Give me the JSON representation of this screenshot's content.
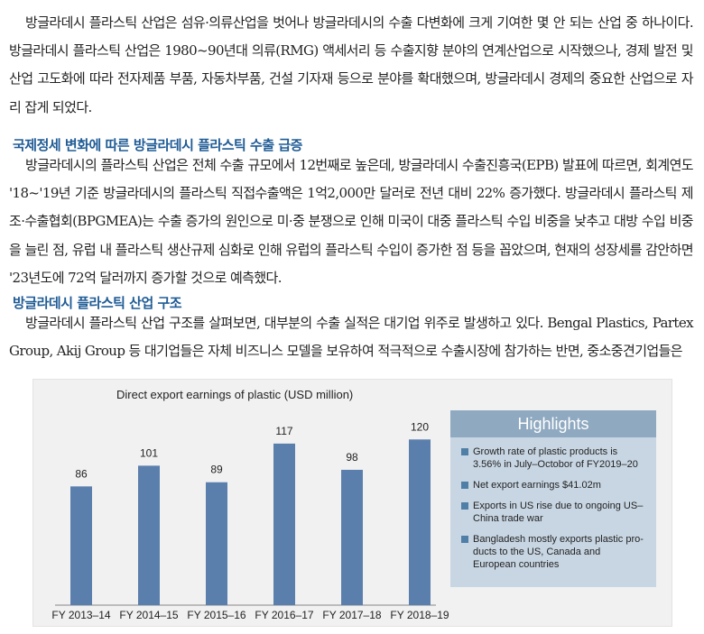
{
  "article": {
    "intro": "방글라데시 플라스틱 산업은 섬유·의류산업을 벗어나 방글라데시의 수출 다변화에 크게 기여한 몇 안 되는 산업 중 하나이다. 방글라데시 플라스틱 산업은 1980~90년대 의류(RMG) 액세서리 등 수출지향 분야의 연계산업으로 시작했으나, 경제 발전 및 산업 고도화에 따라 전자제품 부품, 자동차부품, 건설 기자재 등으로 분야를 확대했으며, 방글라데시 경제의 중요한 산업으로 자리 잡게 되었다.",
    "section1_heading": "국제정세 변화에 따른 방글라데시 플라스틱 수출 급증",
    "section1_body": "방글라데시의 플라스틱 산업은 전체 수출 규모에서 12번째로 높은데, 방글라데시 수출진흥국(EPB) 발표에 따르면, 회계연도 '18~'19년 기준 방글라데시의 플라스틱 직접수출액은 1억2,000만 달러로 전년 대비 22% 증가했다. 방글라데시 플라스틱 제조·수출협회(BPGMEA)는 수출 증가의 원인으로 미·중 분쟁으로 인해 미국이 대중 플라스틱 수입 비중을 낮추고 대방 수입 비중을 늘린 점, 유럽 내 플라스틱 생산규제 심화로 인해 유럽의 플라스틱 수입이 증가한 점 등을 꼽았으며, 현재의 성장세를 감안하면 '23년도에 72억 달러까지 증가할 것으로 예측했다.",
    "section2_heading": "방글라데시 플라스틱 산업 구조",
    "section2_body": "방글라데시 플라스틱 산업 구조를 살펴보면, 대부분의 수출 실적은 대기업 위주로 발생하고 있다. Bengal Plastics, Partex Group, Akij Group 등 대기업들은 자체 비즈니스 모델을 보유하여 적극적으로 수출시장에 참가하는 반면, 중소중견기업들은"
  },
  "chart_data": {
    "type": "bar",
    "title": "Direct export earnings of plastic (USD million)",
    "categories": [
      "FY 2013–14",
      "FY 2014–15",
      "FY 2015–16",
      "FY 2016–17",
      "FY 2017–18",
      "FY 2018–19"
    ],
    "values": [
      86,
      101,
      89,
      117,
      98,
      120
    ],
    "ylim": [
      0,
      145
    ],
    "bar_color": "#5b7fad"
  },
  "highlights": {
    "title": "Highlights",
    "items": [
      "Growth rate of plastic products is 3.56% in July–Octobor of FY2019–20",
      "Net export earnings $41.02m",
      "Exports in US rise due to ongoing US–China trade war",
      "Bangladesh mostly exports plastic pro-ducts to the US, Canada and European countries"
    ],
    "bullet_color": "#4f7ea6"
  }
}
